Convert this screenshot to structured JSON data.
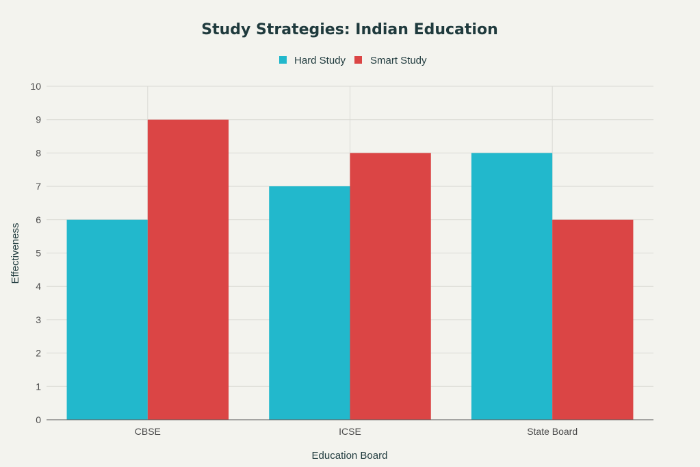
{
  "chart_data": {
    "type": "bar",
    "title": "Study Strategies: Indian Education",
    "xlabel": "Education Board",
    "ylabel": "Effectiveness",
    "categories": [
      "CBSE",
      "ICSE",
      "State Board"
    ],
    "series": [
      {
        "name": "Hard Study",
        "values": [
          6,
          7,
          8
        ],
        "color": "#22b8cc"
      },
      {
        "name": "Smart Study",
        "values": [
          9,
          8,
          6
        ],
        "color": "#db4545"
      }
    ],
    "ylim": [
      0,
      10
    ],
    "yticks": [
      "0",
      "1",
      "2",
      "3",
      "4",
      "5",
      "6",
      "7",
      "8",
      "9",
      "10"
    ],
    "grid": true,
    "legend_position": "top-center"
  }
}
